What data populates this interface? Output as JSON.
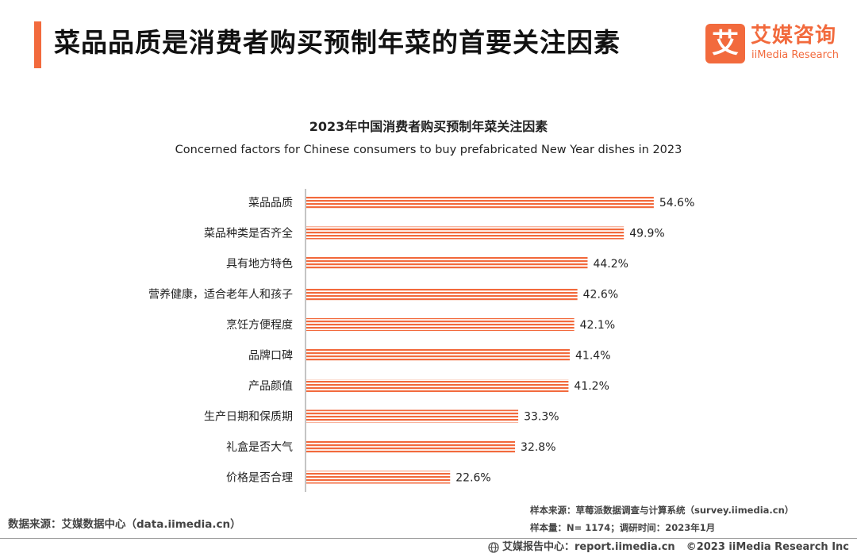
{
  "header": {
    "title": "菜品品质是消费者购买预制年菜的首要关注因素",
    "accent_color": "#f26a3d"
  },
  "logo": {
    "mark": "艾",
    "name_cn": "艾媒咨询",
    "name_en": "iiMedia Research"
  },
  "chart_data": {
    "type": "bar",
    "orientation": "horizontal",
    "title": "2023年中国消费者购买预制年菜关注因素",
    "subtitle": "Concerned factors for Chinese consumers to buy prefabricated New Year dishes in 2023",
    "categories": [
      "菜品品质",
      "菜品种类是否齐全",
      "具有地方特色",
      "营养健康，适合老年人和孩子",
      "烹饪方便程度",
      "品牌口碑",
      "产品颜值",
      "生产日期和保质期",
      "礼盒是否大气",
      "价格是否合理"
    ],
    "values": [
      54.6,
      49.9,
      44.2,
      42.6,
      42.1,
      41.4,
      41.2,
      33.3,
      32.8,
      22.6
    ],
    "value_suffix": "%",
    "bar_color": "#f26a3d",
    "bar_style": "horizontal-striped",
    "grid": false,
    "legend": "none"
  },
  "sources": {
    "left": "数据来源：艾媒数据中心（data.iimedia.cn）",
    "sample_source": "样本来源：草莓派数据调查与计算系统（survey.iimedia.cn）",
    "sample_size": "样本量：N= 1174；调研时间：2023年1月"
  },
  "footer": {
    "report_center": "艾媒报告中心：report.iimedia.cn",
    "copyright": "©2023  iiMedia Research  Inc"
  }
}
